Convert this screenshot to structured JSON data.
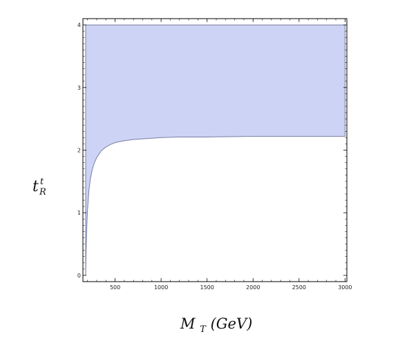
{
  "chart_data": {
    "type": "area",
    "title": "",
    "xlabel": "M_T(GeV)",
    "xlabel_main": "M",
    "xlabel_sub": "T",
    "xlabel_rest": "(GeV)",
    "ylabel_main": "t",
    "ylabel_sub": "R",
    "ylabel_sup": "t",
    "xlim": [
      150,
      3020
    ],
    "ylim": [
      -0.01,
      0.41
    ],
    "x_ticks": [
      500,
      1000,
      1500,
      2000,
      2500,
      3000
    ],
    "x_tick_labels": [
      "500",
      "1000",
      "1500",
      "2000",
      "2500",
      "3000"
    ],
    "y_ticks": [
      0,
      0.1,
      0.2,
      0.3,
      0.4
    ],
    "y_tick_labels": [
      "0",
      "1",
      "2",
      "3",
      "4"
    ],
    "region": {
      "upper_bound": 0.4,
      "x_start": 180,
      "x_end": 3000,
      "lower_boundary": {
        "x": [
          180,
          185,
          190,
          200,
          215,
          230,
          250,
          275,
          300,
          350,
          400,
          450,
          500,
          600,
          700,
          800,
          1000,
          1200,
          1500,
          2000,
          2500,
          3000
        ],
        "y": [
          0.0,
          0.04,
          0.07,
          0.104,
          0.135,
          0.153,
          0.168,
          0.18,
          0.188,
          0.199,
          0.205,
          0.209,
          0.212,
          0.215,
          0.217,
          0.218,
          0.22,
          0.221,
          0.221,
          0.222,
          0.222,
          0.222
        ]
      }
    },
    "grid": false,
    "legend": "none",
    "colors": {
      "fill": "#ccd3f5",
      "stroke": "#7a7fa3",
      "frame": "#000000"
    }
  }
}
